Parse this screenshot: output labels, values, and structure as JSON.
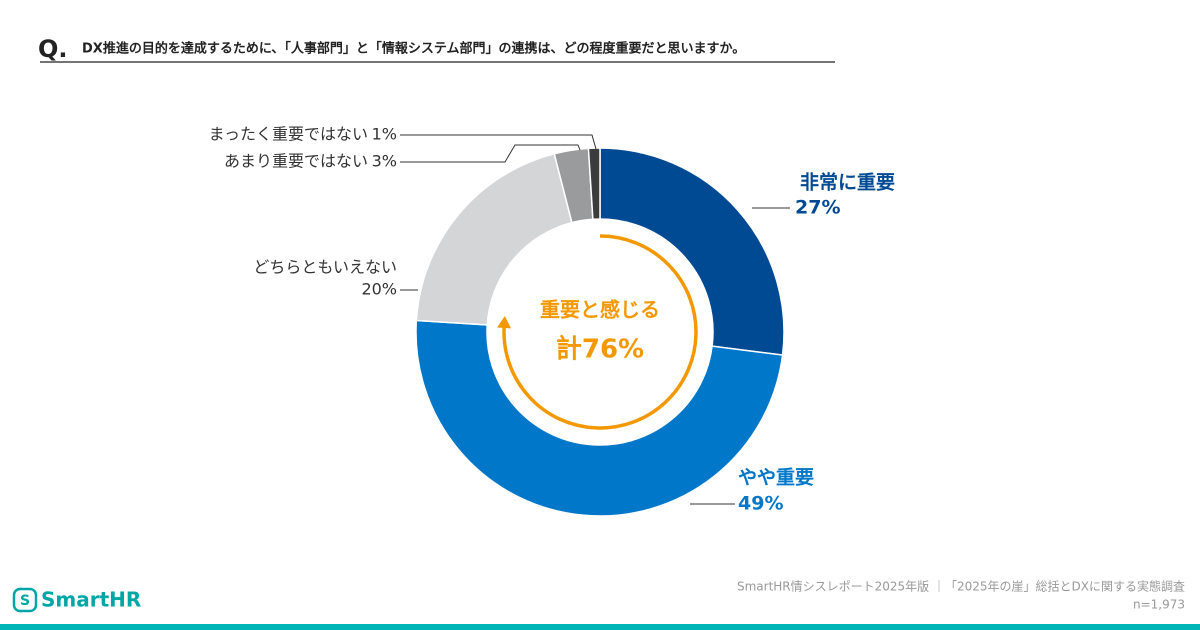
{
  "header": {
    "q": "Q.",
    "question": "DX推進の目的を達成するために、「人事部門」と「情報システム部門」の連携は、どの程度重要だと思いますか。"
  },
  "chart_data": {
    "type": "donut",
    "categories": [
      "非常に重要",
      "やや重要",
      "どちらともいえない",
      "あまり重要ではない",
      "まったく重要ではない"
    ],
    "values": [
      27,
      49,
      20,
      3,
      1
    ],
    "value_labels": [
      "27%",
      "49%",
      "20%",
      "3%",
      "1%"
    ],
    "colors": [
      "#004a94",
      "#0077c8",
      "#d4d5d7",
      "#9a9b9d",
      "#3c3c3c"
    ],
    "center_label": "重要と感じる",
    "center_total": "計76%",
    "highlight_color": "#f39800"
  },
  "footer": {
    "logo": "SmartHR",
    "source": "SmartHR情シスレポート2025年版 ｜「2025年の崖」総括とDXに関する実態調査",
    "n": "n=1,973"
  }
}
